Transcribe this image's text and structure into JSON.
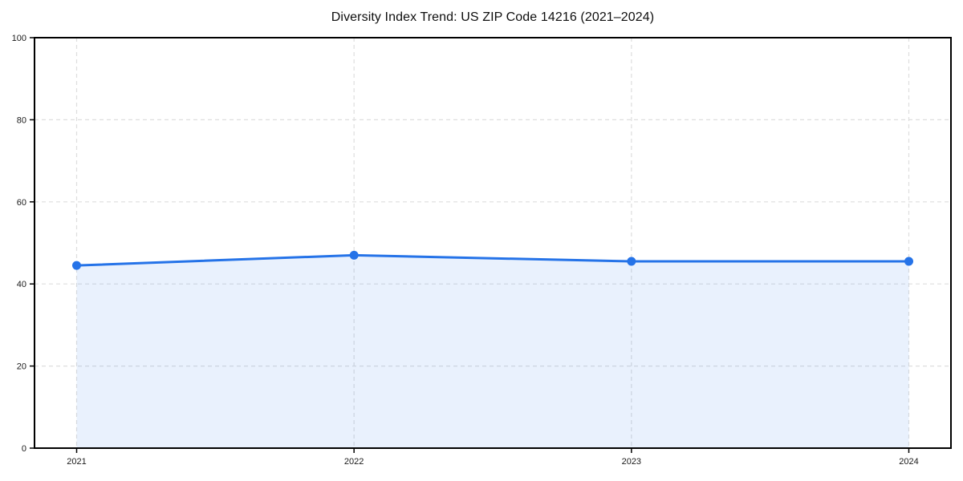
{
  "chart_data": {
    "type": "area",
    "title": "Diversity Index Trend: US ZIP Code 14216 (2021–2024)",
    "x": [
      "2021",
      "2022",
      "2023",
      "2024"
    ],
    "series": [
      {
        "name": "Diversity Index",
        "values": [
          44.5,
          47.0,
          45.5,
          45.5
        ]
      }
    ],
    "xlabel": "",
    "ylabel": "",
    "ylim": [
      0,
      100
    ],
    "yticks": [
      0,
      20,
      40,
      60,
      80,
      100
    ],
    "grid": true,
    "grid_style": "dashed",
    "legend": "none",
    "marker": "circle",
    "colors": {
      "line": "#2573e8",
      "fill": "rgba(37,115,232,0.10)",
      "grid": "#dedede",
      "axis": "#000000",
      "tick_text": "#1a1a1a",
      "title_text": "#0e0e0e"
    }
  }
}
